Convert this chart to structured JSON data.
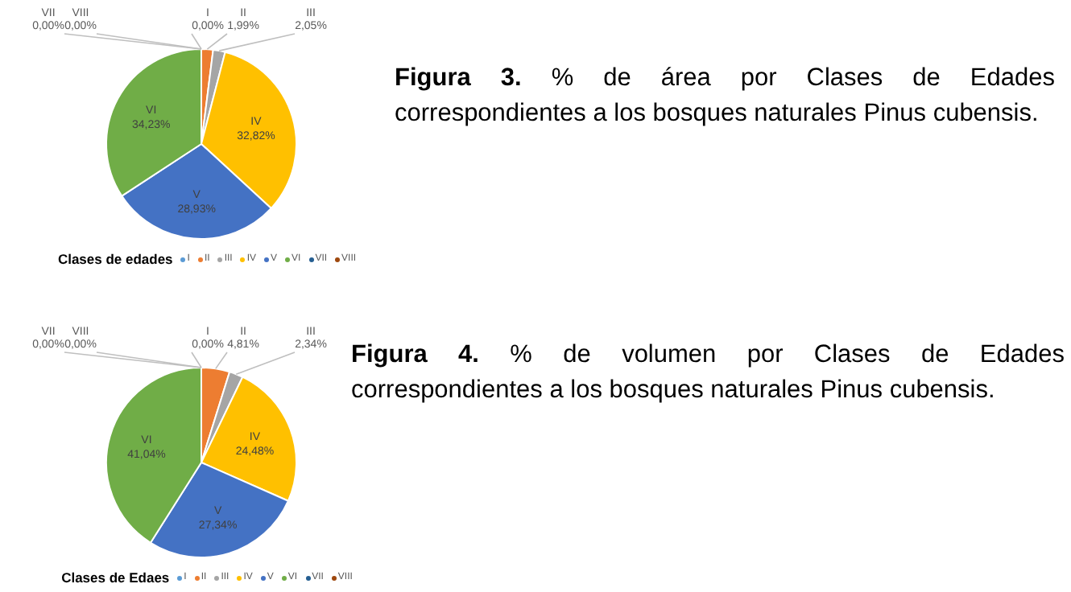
{
  "chart_data": [
    {
      "type": "pie",
      "title": "Figura 3.",
      "subtitle": "% de área por Clases de Edades correspondientes a los bosques naturales Pinus cubensis.",
      "legend_title": "Clases de edades",
      "legend": "bottom",
      "categories": [
        "I",
        "II",
        "III",
        "IV",
        "V",
        "VI",
        "VII",
        "VIII"
      ],
      "values": [
        0,
        1.99,
        2.05,
        32.82,
        28.93,
        34.23,
        0,
        0
      ],
      "value_labels": [
        "0,00%",
        "1,99%",
        "2,05%",
        "32,82%",
        "28,93%",
        "34,23%",
        "0,00%",
        "0,00%"
      ],
      "colors": [
        "#5b9bd5",
        "#ed7d31",
        "#a5a5a5",
        "#ffc000",
        "#4472c4",
        "#70ad47",
        "#255e91",
        "#9e480e"
      ]
    },
    {
      "type": "pie",
      "title": "Figura 4.",
      "subtitle": "% de volumen por Clases de Edades correspondientes a los bosques naturales Pinus cubensis.",
      "legend_title": "Clases de Edaes",
      "legend": "bottom",
      "categories": [
        "I",
        "II",
        "III",
        "IV",
        "V",
        "VI",
        "VII",
        "VIII"
      ],
      "values": [
        0,
        4.81,
        2.34,
        24.48,
        27.34,
        41.04,
        0,
        0
      ],
      "value_labels": [
        "0,00%",
        "4,81%",
        "2,34%",
        "24,48%",
        "27,34%",
        "41,04%",
        "0,00%",
        "0,00%"
      ],
      "colors": [
        "#5b9bd5",
        "#ed7d31",
        "#a5a5a5",
        "#ffc000",
        "#4472c4",
        "#70ad47",
        "#255e91",
        "#9e480e"
      ]
    }
  ]
}
